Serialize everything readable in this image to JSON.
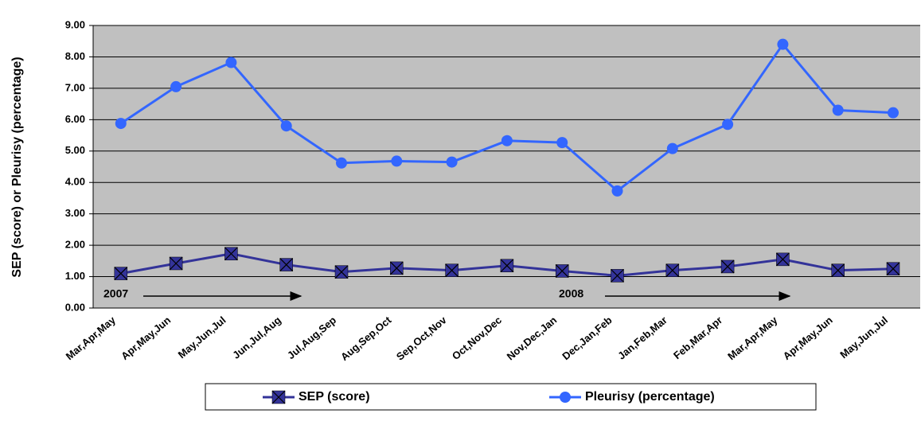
{
  "chart_data": {
    "type": "line",
    "y_label": "SEP (score) or Pleurisy (percentage)",
    "categories": [
      "Mar,Apr,May",
      "Apr,May,Jun",
      "May,Jun,Jul",
      "Jun,Jul,Aug",
      "Jul,Aug,Sep",
      "Aug,Sep,Oct",
      "Sep,Oct,Nov",
      "Oct,Nov,Dec",
      "Nov,Dec,Jan",
      "Dec,Jan,Feb",
      "Jan,Feb,Mar",
      "Feb,Mar,Apr",
      "Mar,Apr,May",
      "Apr,May,Jun",
      "May,Jun,Jul"
    ],
    "series": [
      {
        "name": "SEP (score)",
        "color": "#333399",
        "marker": "x-square",
        "values": [
          1.1,
          1.42,
          1.73,
          1.38,
          1.15,
          1.27,
          1.2,
          1.35,
          1.18,
          1.03,
          1.2,
          1.32,
          1.55,
          1.2,
          1.25
        ]
      },
      {
        "name": "Pleurisy (percentage)",
        "color": "#3366ff",
        "marker": "circle",
        "values": [
          5.88,
          7.05,
          7.82,
          5.8,
          4.62,
          4.68,
          4.65,
          5.33,
          5.27,
          3.73,
          5.08,
          5.85,
          8.4,
          6.3,
          6.22
        ]
      }
    ],
    "annotations": [
      "2007",
      "2008"
    ],
    "ylim": [
      0,
      9
    ],
    "yticks": [
      {
        "value": 0,
        "label": "0.00"
      },
      {
        "value": 1,
        "label": "1.00"
      },
      {
        "value": 2,
        "label": "2.00"
      },
      {
        "value": 3,
        "label": "3.00"
      },
      {
        "value": 4,
        "label": "4.00"
      },
      {
        "value": 5,
        "label": "5.00"
      },
      {
        "value": 6,
        "label": "6.00"
      },
      {
        "value": 7,
        "label": "7.00"
      },
      {
        "value": 8,
        "label": "8.00"
      },
      {
        "value": 9,
        "label": "9.00"
      }
    ],
    "grid": true,
    "background": "#c0c0c0",
    "legend": "bottom"
  }
}
